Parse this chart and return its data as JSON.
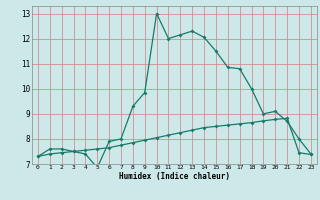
{
  "title": "",
  "xlabel": "Humidex (Indice chaleur)",
  "bg_color": "#cce8e8",
  "grid_color": "#d09090",
  "line_color": "#1a7a6a",
  "curve1_x": [
    0,
    1,
    2,
    3,
    4,
    5,
    6,
    7,
    8,
    9,
    10,
    11,
    12,
    13,
    14,
    15,
    16,
    17,
    18,
    19,
    20,
    21,
    22,
    23
  ],
  "curve1_y": [
    7.3,
    7.6,
    7.6,
    7.5,
    7.4,
    6.85,
    7.9,
    8.0,
    9.3,
    9.85,
    13.0,
    12.0,
    12.15,
    12.3,
    12.05,
    11.5,
    10.85,
    10.8,
    10.0,
    9.0,
    9.1,
    8.7,
    8.0,
    7.4
  ],
  "curve2_x": [
    0,
    1,
    2,
    3,
    4,
    5,
    6,
    7,
    8,
    9,
    10,
    11,
    12,
    13,
    14,
    15,
    16,
    17,
    18,
    19,
    20,
    21,
    22,
    23
  ],
  "curve2_y": [
    7.3,
    7.4,
    7.45,
    7.5,
    7.55,
    7.6,
    7.65,
    7.75,
    7.85,
    7.95,
    8.05,
    8.15,
    8.25,
    8.35,
    8.45,
    8.5,
    8.55,
    8.6,
    8.65,
    8.72,
    8.78,
    8.82,
    7.45,
    7.38
  ],
  "ylim": [
    7.0,
    13.3
  ],
  "xlim": [
    -0.5,
    23.5
  ],
  "yticks": [
    7,
    8,
    9,
    10,
    11,
    12,
    13
  ],
  "xticks": [
    0,
    1,
    2,
    3,
    4,
    5,
    6,
    7,
    8,
    9,
    10,
    11,
    12,
    13,
    14,
    15,
    16,
    17,
    18,
    19,
    20,
    21,
    22,
    23
  ]
}
